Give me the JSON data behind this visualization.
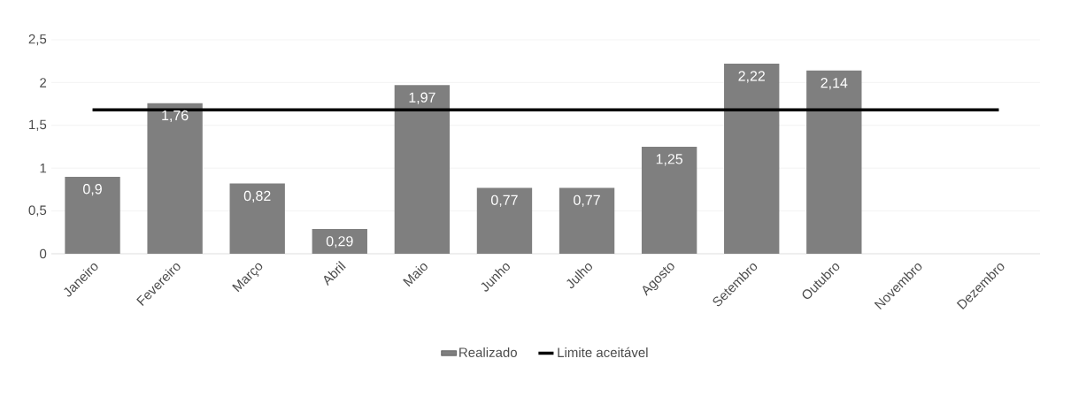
{
  "chart_data": {
    "type": "bar",
    "categories": [
      "Janeiro",
      "Fevereiro",
      "Março",
      "Abril",
      "Maio",
      "Junho",
      "Julho",
      "Agosto",
      "Setembro",
      "Outubro",
      "Novembro",
      "Dezembro"
    ],
    "series": [
      {
        "name": "Realizado",
        "color": "#7f7f7f",
        "values": [
          0.9,
          1.76,
          0.82,
          0.29,
          1.97,
          0.77,
          0.77,
          1.25,
          2.22,
          2.14,
          null,
          null
        ],
        "value_labels": [
          "0,9",
          "1,76",
          "0,82",
          "0,29",
          "1,97",
          "0,77",
          "0,77",
          "1,25",
          "2,22",
          "2,14",
          null,
          null
        ]
      },
      {
        "name": "Limite aceitável",
        "type": "line",
        "color": "#000000",
        "values": [
          1.68,
          1.68,
          1.68,
          1.68,
          1.68,
          1.68,
          1.68,
          1.68,
          1.68,
          1.68,
          1.68,
          1.68
        ]
      }
    ],
    "ylim": [
      0,
      2.5
    ],
    "yticks": [
      0,
      {
        "value": 0.5,
        "label": "0,5"
      },
      1,
      {
        "value": 1.5,
        "label": "1,5"
      },
      2,
      {
        "value": 2.5,
        "label": "2,5"
      }
    ],
    "grid": "y",
    "legend": "bottom",
    "marker": "none",
    "line_style": "solid"
  }
}
